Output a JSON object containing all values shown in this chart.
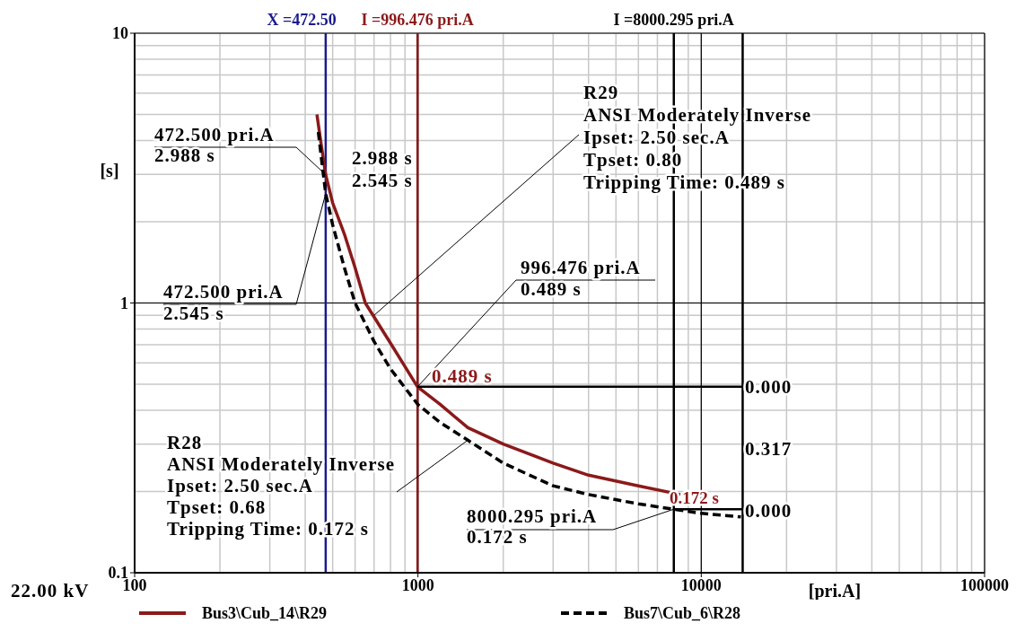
{
  "chart_data": {
    "type": "line",
    "xlabel": "[pri.A]",
    "ylabel": "[s]",
    "log": "xy",
    "xlim": [
      100,
      100000
    ],
    "xticks": [
      100,
      1000,
      10000,
      100000
    ],
    "ylim": [
      0.1,
      10
    ],
    "yticks": [
      0.1,
      1,
      10
    ],
    "grid": true,
    "legend": "bottom",
    "series": [
      {
        "name": "Bus3\\Cub_14\\R29",
        "color": "#8b1a1a",
        "line_style": "solid",
        "x": [
          440,
          455,
          472.5,
          500,
          550,
          600,
          652,
          800,
          996.476,
          1200,
          1500,
          2000,
          3000,
          4000,
          6000,
          8430
        ],
        "values": [
          5.0,
          3.9,
          2.988,
          2.35,
          1.8,
          1.35,
          1.0,
          0.71,
          0.489,
          0.42,
          0.345,
          0.3,
          0.255,
          0.23,
          0.21,
          0.195
        ]
      },
      {
        "name": "Bus7\\Cub_6\\R28",
        "color": "#000000",
        "line_style": "dashed",
        "x": [
          445,
          460,
          472.5,
          500,
          550,
          600,
          700,
          800,
          1000,
          1200,
          1500,
          2000,
          3000,
          4000,
          6000,
          8000.295,
          10000,
          13800
        ],
        "values": [
          4.3,
          3.2,
          2.545,
          1.95,
          1.35,
          1.0,
          0.72,
          0.57,
          0.42,
          0.36,
          0.31,
          0.255,
          0.21,
          0.195,
          0.18,
          0.172,
          0.166,
          0.161
        ]
      },
      {
        "color": "#000000",
        "line_style": "solid",
        "x": [
          996.476,
          14000
        ],
        "values": [
          0.489,
          0.489
        ]
      },
      {
        "color": "#000000",
        "line_style": "solid",
        "x": [
          8000.295,
          14000
        ],
        "values": [
          0.172,
          0.172
        ]
      }
    ],
    "ref_lines": [
      {
        "axis": "x",
        "value": 472.5,
        "label": "X =472.50",
        "color": "#1a1a8b"
      },
      {
        "axis": "x",
        "value": 996.476,
        "label": "I =996.476 pri.A",
        "color": "#8b1a1a"
      },
      {
        "axis": "x",
        "value": 8000.295,
        "label": "I =8000.295 pri.A",
        "color": "#000000"
      },
      {
        "axis": "x",
        "value": 14000,
        "color": "#000000"
      }
    ],
    "annotations": [
      {
        "text": "R29\nANSI Moderately Inverse\nIpset: 2.50 sec.A\nTpset: 0.80\nTripping Time: 0.489 s",
        "x": 700,
        "y": 0.9
      },
      {
        "text": "472.500 pri.A\n2.988 s",
        "x": 472.5,
        "y": 2.988
      },
      {
        "text": "2.988 s",
        "x": 472.5,
        "y": 2.988
      },
      {
        "text": "2.545 s",
        "x": 472.5,
        "y": 2.545
      },
      {
        "text": "472.500 pri.A\n2.545 s",
        "x": 472.5,
        "y": 2.545
      },
      {
        "text": "996.476 pri.A\n0.489 s",
        "x": 996.476,
        "y": 0.489
      },
      {
        "text": "0.489 s",
        "x": 996.476,
        "y": 0.489
      },
      {
        "text": "0.000",
        "x": 14000,
        "y": 0.489
      },
      "0.317",
      {
        "text": "R28\nANSI Moderately Inverse\nIpset: 2.50 sec.A\nTpset: 0.68\nTripping Time: 0.172 s",
        "x": 1500,
        "y": 0.31
      },
      {
        "text": "0.172 s",
        "x": 8430,
        "y": 0.195
      },
      {
        "text": "8000.295 pri.A\n0.172 s",
        "x": 8000.295,
        "y": 0.172
      },
      {
        "text": "0.000",
        "x": 14000,
        "y": 0.172
      },
      "22.00 kV"
    ]
  }
}
